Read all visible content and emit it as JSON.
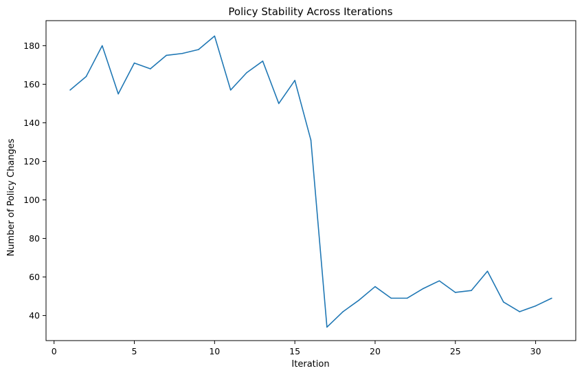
{
  "chart_data": {
    "type": "line",
    "title": "Policy Stability Across Iterations",
    "xlabel": "Iteration",
    "ylabel": "Number of Policy Changes",
    "xlim": [
      -0.5,
      32.5
    ],
    "ylim": [
      27,
      193
    ],
    "x_ticks": [
      0,
      5,
      10,
      15,
      20,
      25,
      30
    ],
    "y_ticks": [
      40,
      60,
      80,
      100,
      120,
      140,
      160,
      180
    ],
    "grid": false,
    "line_color": "#1f77b4",
    "series": [
      {
        "x": [
          1,
          2,
          3,
          4,
          5,
          6,
          7,
          8,
          9,
          10,
          11,
          12,
          13,
          14,
          15,
          16,
          17,
          18,
          19,
          20,
          21,
          22,
          23,
          24,
          25,
          26,
          27,
          28,
          29,
          30,
          31
        ],
        "values": [
          157,
          164,
          180,
          155,
          171,
          168,
          175,
          176,
          178,
          185,
          157,
          166,
          172,
          150,
          162,
          131,
          34,
          42,
          48,
          55,
          49,
          49,
          54,
          58,
          52,
          53,
          63,
          47,
          42,
          45,
          49
        ]
      }
    ]
  }
}
